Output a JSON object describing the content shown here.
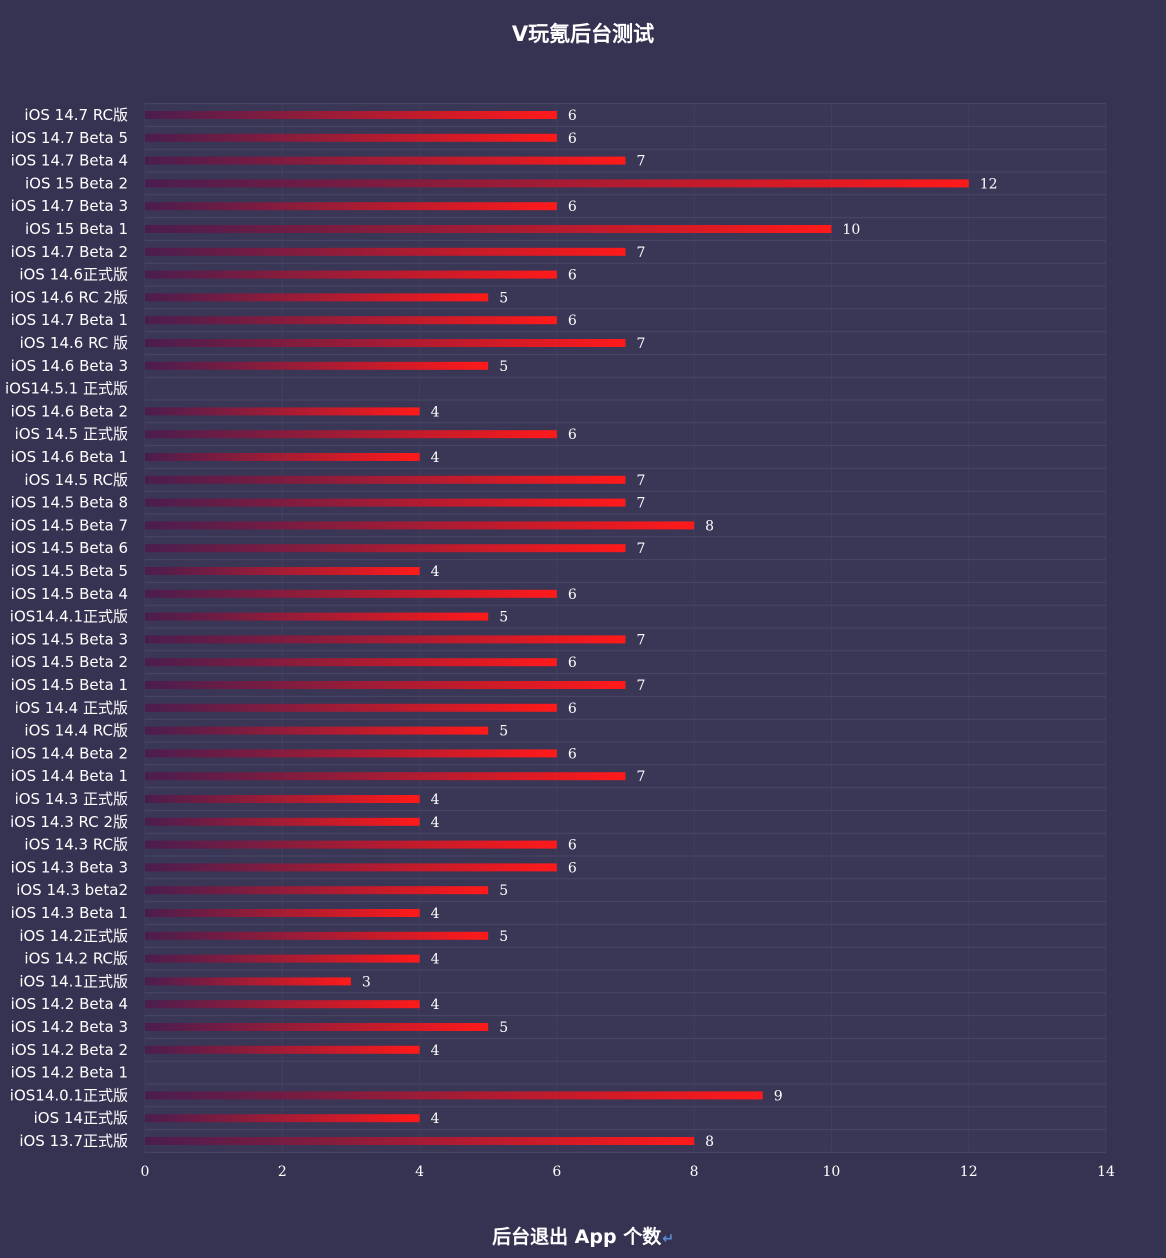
{
  "chart_data": {
    "type": "bar",
    "orientation": "horizontal",
    "title": "V玩氪后台测试",
    "xlabel": "后台退出 App 个数",
    "xlim": [
      0,
      14
    ],
    "xticks": [
      0,
      2,
      4,
      6,
      8,
      10,
      12,
      14
    ],
    "grid": true,
    "legend": "none",
    "categories": [
      "iOS 14.7 RC版",
      "iOS 14.7 Beta 5",
      "iOS 14.7 Beta 4",
      "iOS 15 Beta 2",
      "iOS 14.7 Beta 3",
      "iOS 15 Beta 1",
      "iOS 14.7 Beta 2",
      "iOS 14.6正式版",
      "iOS 14.6 RC 2版",
      "iOS 14.7 Beta 1",
      "iOS 14.6 RC 版",
      "iOS 14.6 Beta 3",
      "iOS14.5.1 正式版",
      "iOS 14.6 Beta 2",
      "iOS 14.5 正式版",
      "iOS 14.6 Beta 1",
      "iOS 14.5 RC版",
      "iOS 14.5 Beta 8",
      "iOS 14.5 Beta 7",
      "iOS 14.5 Beta 6",
      "iOS 14.5 Beta 5",
      "iOS 14.5 Beta 4",
      "iOS14.4.1正式版",
      "iOS 14.5 Beta 3",
      "iOS 14.5 Beta 2",
      "iOS 14.5 Beta 1",
      "iOS 14.4 正式版",
      "iOS 14.4 RC版",
      "iOS 14.4 Beta 2",
      "iOS 14.4 Beta 1",
      "iOS 14.3 正式版",
      "iOS 14.3 RC 2版",
      "iOS 14.3 RC版",
      "iOS 14.3 Beta 3",
      "iOS 14.3 beta2",
      "iOS 14.3 Beta 1",
      "iOS 14.2正式版",
      "iOS 14.2 RC版",
      "iOS 14.1正式版",
      "iOS 14.2 Beta 4",
      "iOS 14.2 Beta 3",
      "iOS 14.2 Beta 2",
      "iOS 14.2 Beta 1",
      "iOS14.0.1正式版",
      "iOS 14正式版",
      "iOS 13.7正式版"
    ],
    "values": [
      6,
      6,
      7,
      12,
      6,
      10,
      7,
      6,
      5,
      6,
      7,
      5,
      null,
      4,
      6,
      4,
      7,
      7,
      8,
      7,
      4,
      6,
      5,
      7,
      6,
      7,
      6,
      5,
      6,
      7,
      4,
      4,
      6,
      6,
      5,
      4,
      5,
      4,
      3,
      4,
      5,
      4,
      null,
      9,
      4,
      8
    ],
    "colors": {
      "background": "#363251",
      "bar_start": "#4a1d4f",
      "bar_end": "#ff1a1a",
      "grid": "#4a4766",
      "text": "#ffffff"
    }
  },
  "return_glyph": "↵"
}
